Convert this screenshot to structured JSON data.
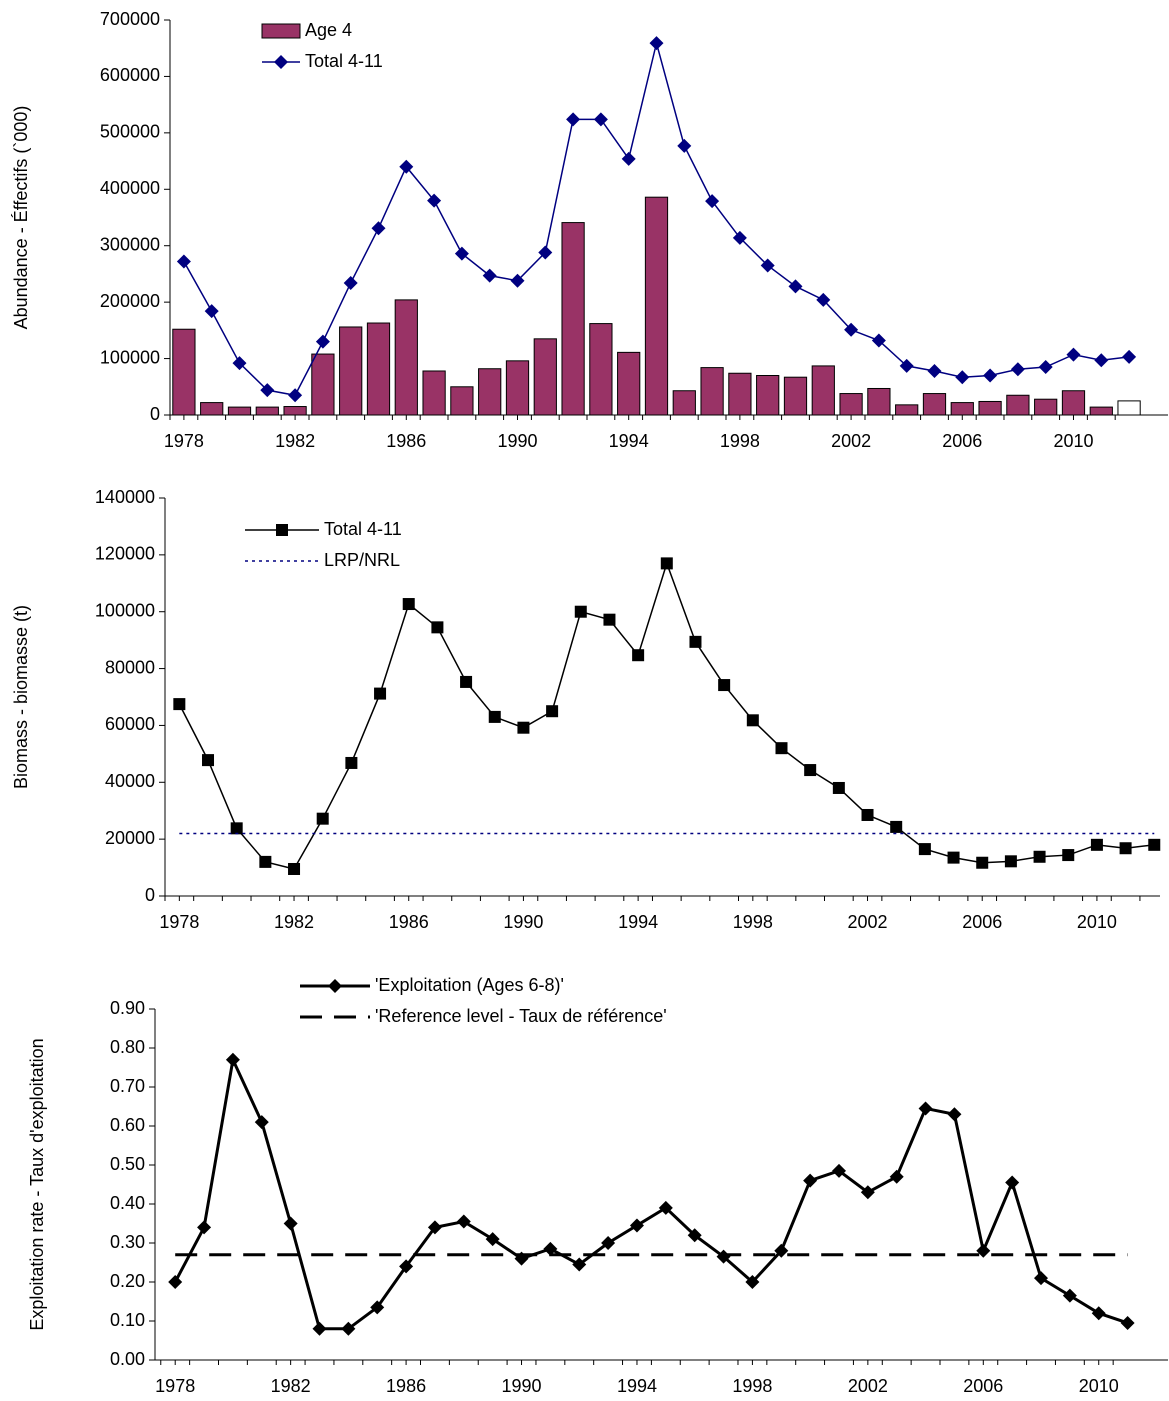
{
  "chart_data": [
    {
      "type": "bar",
      "ylabel": "Abundance - Éffectifs (`000)",
      "x": [
        1978,
        1979,
        1980,
        1981,
        1982,
        1983,
        1984,
        1985,
        1986,
        1987,
        1988,
        1989,
        1990,
        1991,
        1992,
        1993,
        1994,
        1995,
        1996,
        1997,
        1998,
        1999,
        2000,
        2001,
        2002,
        2003,
        2004,
        2005,
        2006,
        2007,
        2008,
        2009,
        2010,
        2011,
        2012
      ],
      "xlim": [
        1977.5,
        2013.4
      ],
      "xticks": [
        1978,
        1982,
        1986,
        1990,
        1994,
        1998,
        2002,
        2006,
        2010
      ],
      "ylim": [
        0,
        700000
      ],
      "yticks": [
        0,
        100000,
        200000,
        300000,
        400000,
        500000,
        600000,
        700000
      ],
      "series": [
        {
          "name": "Age 4",
          "type": "bar",
          "color": "#993366",
          "colors": [
            "#993366",
            "#993366",
            "#993366",
            "#993366",
            "#993366",
            "#993366",
            "#993366",
            "#993366",
            "#993366",
            "#993366",
            "#993366",
            "#993366",
            "#993366",
            "#993366",
            "#993366",
            "#993366",
            "#993366",
            "#993366",
            "#993366",
            "#993366",
            "#993366",
            "#993366",
            "#993366",
            "#993366",
            "#993366",
            "#993366",
            "#993366",
            "#993366",
            "#993366",
            "#993366",
            "#993366",
            "#993366",
            "#993366",
            "#993366",
            "#ffffff"
          ],
          "values": [
            152000,
            22000,
            14000,
            14000,
            15000,
            108000,
            156000,
            163000,
            204000,
            78000,
            50000,
            82000,
            96000,
            135000,
            341000,
            162000,
            111000,
            386000,
            43000,
            84000,
            74000,
            70000,
            67000,
            87000,
            38000,
            47000,
            18000,
            38000,
            22000,
            24000,
            35000,
            28000,
            43000,
            14000,
            25000
          ]
        },
        {
          "name": "Total 4-11",
          "type": "line",
          "color": "#000080",
          "marker": "diamond",
          "values": [
            272000,
            184000,
            92000,
            44000,
            35000,
            130000,
            234000,
            331000,
            440000,
            380000,
            286000,
            247000,
            238000,
            288000,
            524000,
            524000,
            454000,
            659000,
            477000,
            379000,
            314000,
            265000,
            228000,
            204000,
            151000,
            132000,
            87000,
            78000,
            67000,
            70000,
            81000,
            85000,
            107000,
            97000,
            103000
          ]
        }
      ]
    },
    {
      "type": "line",
      "ylabel": "Biomass - biomasse (t)",
      "x": [
        1978,
        1979,
        1980,
        1981,
        1982,
        1983,
        1984,
        1985,
        1986,
        1987,
        1988,
        1989,
        1990,
        1991,
        1992,
        1993,
        1994,
        1995,
        1996,
        1997,
        1998,
        1999,
        2000,
        2001,
        2002,
        2003,
        2004,
        2005,
        2006,
        2007,
        2008,
        2009,
        2010,
        2011,
        2012
      ],
      "xlim": [
        1977.5,
        2012.2
      ],
      "xticks": [
        1978,
        1982,
        1986,
        1990,
        1994,
        1998,
        2002,
        2006,
        2010
      ],
      "ylim": [
        0,
        140000
      ],
      "yticks": [
        0,
        20000,
        40000,
        60000,
        80000,
        100000,
        120000,
        140000
      ],
      "series": [
        {
          "name": "Total 4-11",
          "type": "line",
          "color": "#000000",
          "marker": "square",
          "values": [
            67500,
            47800,
            23800,
            12000,
            9500,
            27200,
            46800,
            71200,
            102700,
            94500,
            75300,
            63000,
            59200,
            65000,
            100000,
            97200,
            84700,
            117000,
            89400,
            74200,
            61800,
            52000,
            44300,
            38000,
            28500,
            24300,
            16500,
            13500,
            11700,
            12200,
            13800,
            14400,
            18000,
            16800,
            18000
          ]
        },
        {
          "name": "LRP/NRL",
          "type": "line",
          "color": "#000080",
          "dash": "dotted",
          "x": [
            1978,
            2012
          ],
          "values": [
            22000,
            22000
          ]
        }
      ]
    },
    {
      "type": "line",
      "ylabel": "Exploitation rate - Taux d'exploitation",
      "x": [
        1978,
        1979,
        1980,
        1981,
        1982,
        1983,
        1984,
        1985,
        1986,
        1987,
        1988,
        1989,
        1990,
        1991,
        1992,
        1993,
        1994,
        1995,
        1996,
        1997,
        1998,
        1999,
        2000,
        2001,
        2002,
        2003,
        2004,
        2005,
        2006,
        2007,
        2008,
        2009,
        2010,
        2011
      ],
      "xlim": [
        1977.3,
        2012.4
      ],
      "xticks": [
        1978,
        1982,
        1986,
        1990,
        1994,
        1998,
        2002,
        2006,
        2010
      ],
      "ylim": [
        0,
        0.9
      ],
      "yticks": [
        {
          "value": 0,
          "label": "0.00"
        },
        {
          "value": 0.1,
          "label": "0.10"
        },
        {
          "value": 0.2,
          "label": "0.20"
        },
        {
          "value": 0.3,
          "label": "0.30"
        },
        {
          "value": 0.4,
          "label": "0.40"
        },
        {
          "value": 0.5,
          "label": "0.50"
        },
        {
          "value": 0.6,
          "label": "0.60"
        },
        {
          "value": 0.7,
          "label": "0.70"
        },
        {
          "value": 0.8,
          "label": "0.80"
        },
        {
          "value": 0.9,
          "label": "0.90"
        }
      ],
      "series": [
        {
          "name": "'Exploitation (Ages 6-8)'",
          "type": "line",
          "color": "#000000",
          "marker": "diamond",
          "width": 3,
          "values": [
            0.2,
            0.34,
            0.77,
            0.61,
            0.35,
            0.08,
            0.08,
            0.135,
            0.24,
            0.34,
            0.355,
            0.31,
            0.26,
            0.285,
            0.245,
            0.3,
            0.345,
            0.39,
            0.32,
            0.265,
            0.2,
            0.28,
            0.46,
            0.485,
            0.43,
            0.47,
            0.645,
            0.63,
            0.28,
            0.455,
            0.21,
            0.165,
            0.12,
            0.095
          ]
        },
        {
          "name": "'Reference level - Taux de référence'",
          "type": "line",
          "color": "#000000",
          "dash": "dashed",
          "width": 3,
          "x": [
            1978,
            2011
          ],
          "values": [
            0.27,
            0.27
          ]
        }
      ]
    }
  ]
}
